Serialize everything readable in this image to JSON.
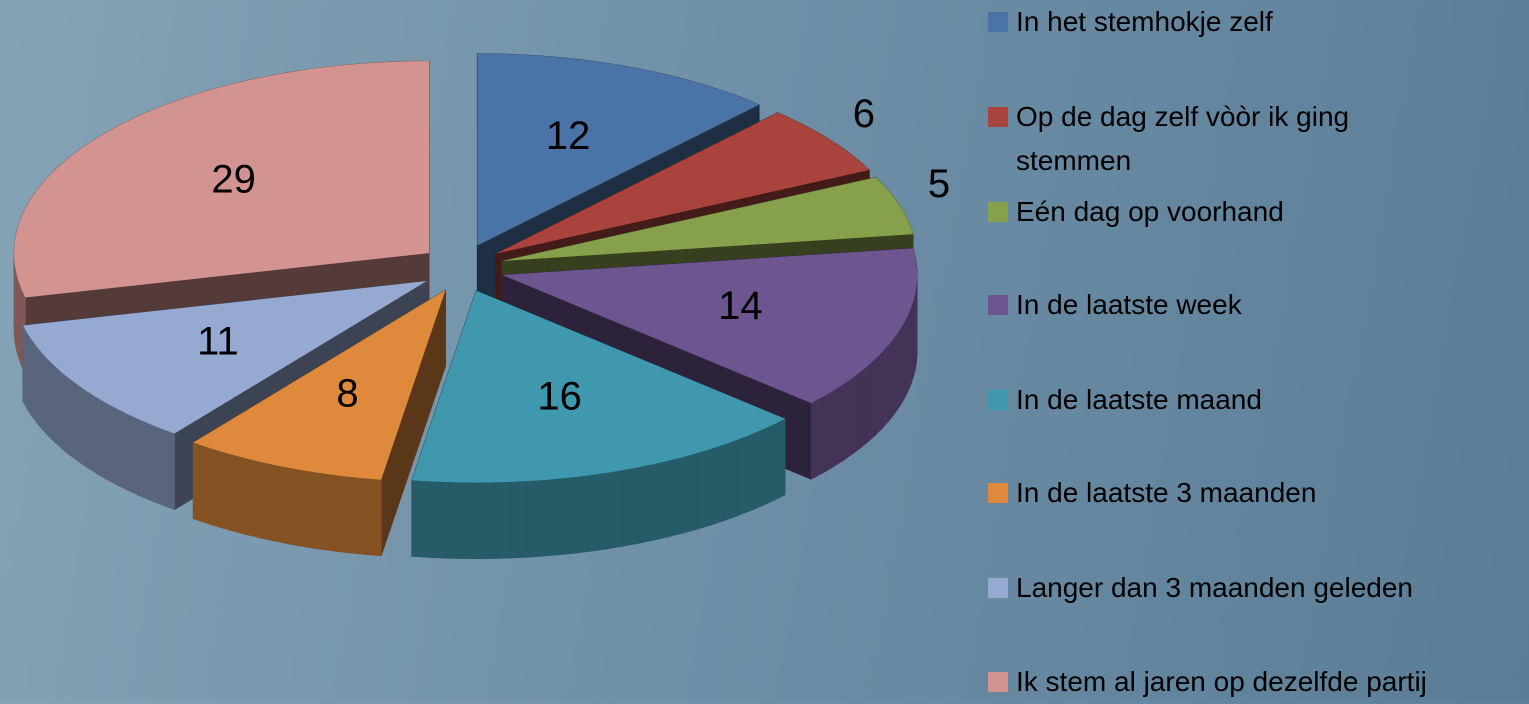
{
  "chart_data": {
    "type": "pie3d",
    "categories": [
      "In het stemhokje zelf",
      "Op de dag zelf vòòr ik ging stemmen",
      "Eén dag op voorhand",
      "In de laatste week",
      "In de laatste maand",
      "In de laatste 3 maanden",
      "Langer dan 3 maanden geleden",
      "Ik stem al jaren op dezelfde partij"
    ],
    "values": [
      12,
      6,
      5,
      14,
      16,
      8,
      11,
      29
    ],
    "colors": [
      "#4a74a8",
      "#a8433e",
      "#87a04b",
      "#6f5590",
      "#3f98ae",
      "#de893c",
      "#95a9d1",
      "#d39491"
    ],
    "legend": "right"
  }
}
